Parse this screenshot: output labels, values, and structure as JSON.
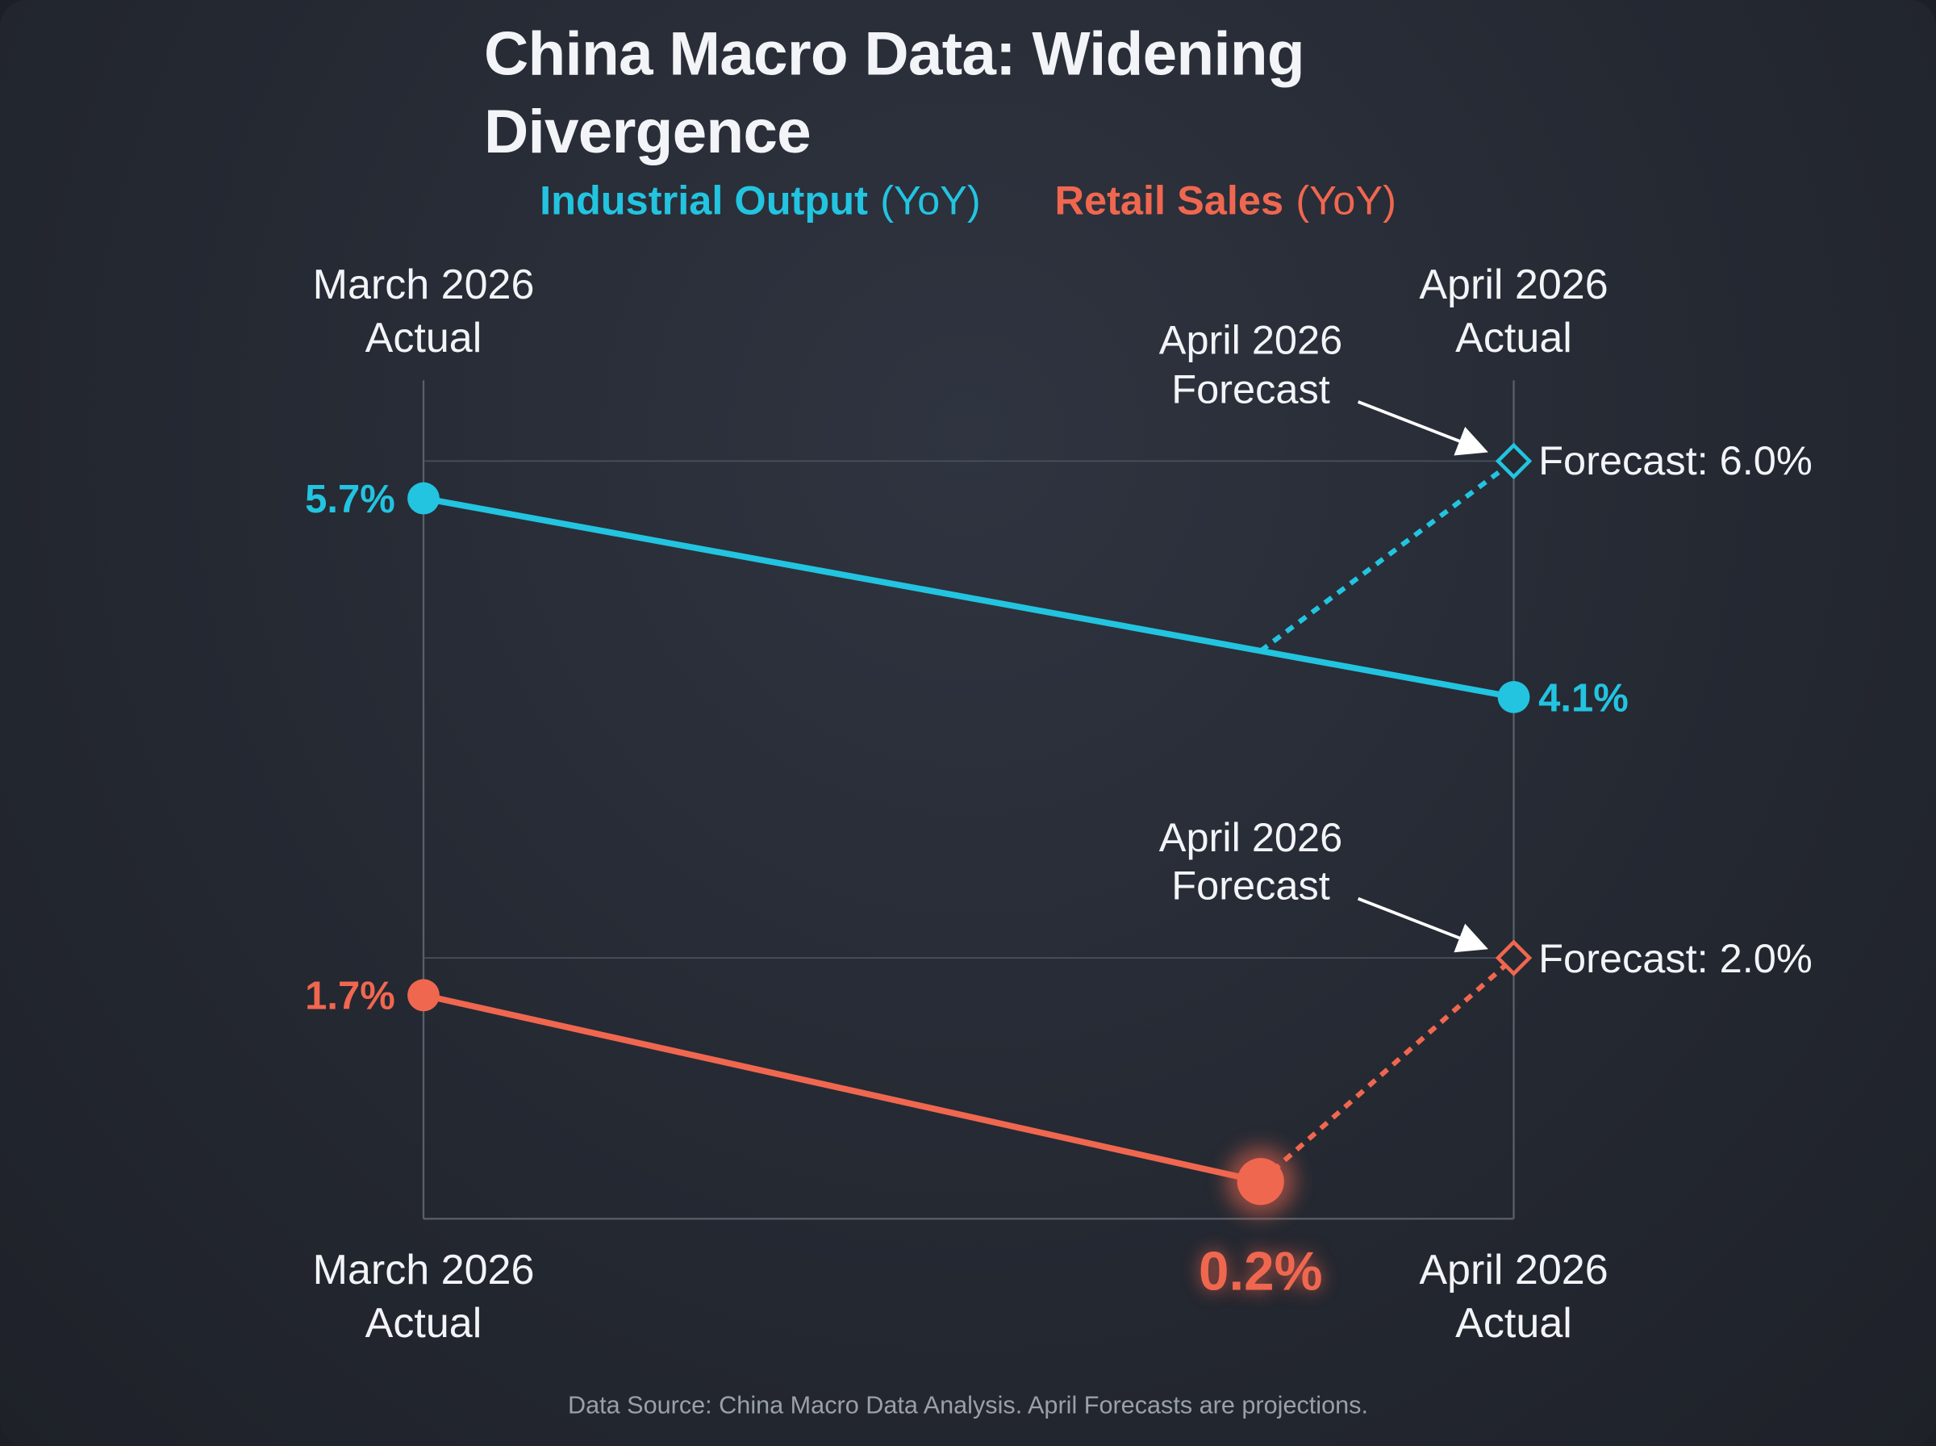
{
  "chart_data": {
    "type": "slope",
    "title": "China Macro Data: Widening Divergence",
    "legend_unit": "(YoY)",
    "categories": [
      "March 2026\nActual",
      "April 2026\nActual"
    ],
    "ylim": [
      -0.1,
      6.65
    ],
    "forecast_annotation": "April 2026\nForecast",
    "series": [
      {
        "name": "Industrial Output",
        "color": "#22c4e0",
        "values": [
          5.7,
          4.1
        ],
        "value_labels": [
          "5.7%",
          "4.1%"
        ],
        "forecast": 6.0,
        "forecast_label": "Forecast: 6.0%"
      },
      {
        "name": "Retail Sales",
        "color": "#f0674f",
        "values": [
          1.7,
          0.2
        ],
        "value_labels": [
          "1.7%",
          "0.2%"
        ],
        "forecast": 2.0,
        "forecast_label": "Forecast: 2.0%"
      }
    ],
    "source": "Data Source: China Macro Data Analysis. April Forecasts are projections."
  }
}
